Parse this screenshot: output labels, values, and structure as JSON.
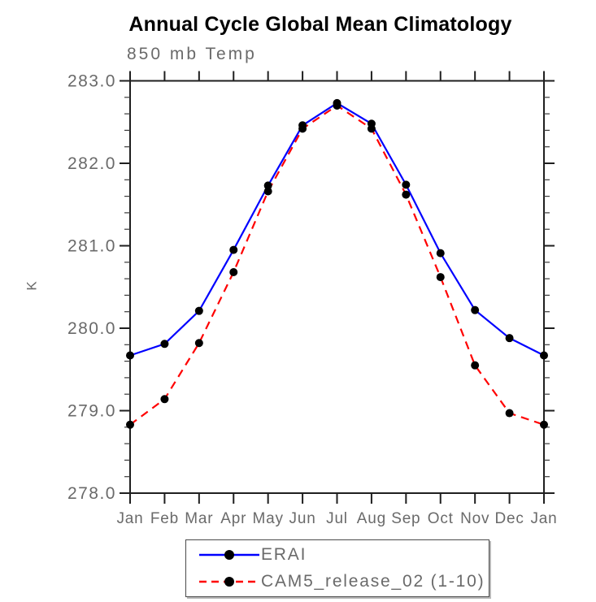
{
  "title": "Annual Cycle Global Mean Climatology",
  "subtitle": "850 mb Temp",
  "ylabel": "K",
  "chart_data": {
    "type": "line",
    "title": "Annual Cycle Global Mean Climatology",
    "subtitle": "850 mb Temp",
    "xlabel": "",
    "ylabel": "K",
    "categories": [
      "Jan",
      "Feb",
      "Mar",
      "Apr",
      "May",
      "Jun",
      "Jul",
      "Aug",
      "Sep",
      "Oct",
      "Nov",
      "Dec",
      "Jan"
    ],
    "ylim": [
      278.0,
      283.0
    ],
    "ytick_interval": 1.0,
    "yminor_interval": 0.2,
    "ytick_labels": [
      "278.0",
      "279.0",
      "280.0",
      "281.0",
      "282.0",
      "283.0"
    ],
    "grid": false,
    "legend_position": "bottom-center",
    "marker": "filled-circle",
    "marker_color": "#000000",
    "series": [
      {
        "name": "ERAI",
        "color": "#0000ff",
        "style": "solid",
        "values": [
          279.67,
          279.81,
          280.21,
          280.95,
          281.73,
          282.46,
          282.73,
          282.48,
          281.74,
          280.91,
          280.22,
          279.88,
          279.67
        ]
      },
      {
        "name": "CAM5_release_02 (1-10)",
        "color": "#ff0000",
        "style": "dashed",
        "values": [
          278.83,
          279.14,
          279.82,
          280.68,
          281.66,
          282.42,
          282.7,
          282.42,
          281.62,
          280.62,
          279.55,
          278.97,
          278.83
        ]
      }
    ]
  },
  "colors": {
    "axis": "#1f1f1f",
    "tick_label": "#6a6a6a",
    "title": "#000000",
    "background": "#ffffff"
  }
}
